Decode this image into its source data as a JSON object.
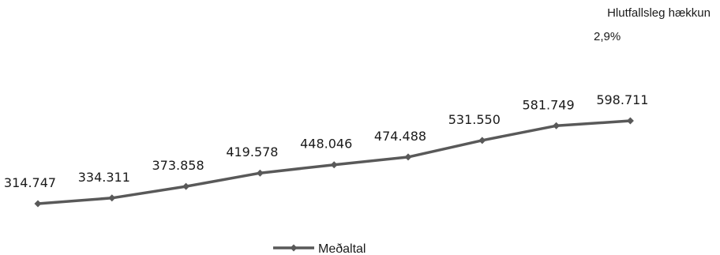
{
  "annotation": {
    "label": "Hlutfallsleg hækkun",
    "value": "2,9%"
  },
  "chart_data": {
    "type": "line",
    "x": [
      1,
      2,
      3,
      4,
      5,
      6,
      7,
      8,
      9
    ],
    "series": [
      {
        "name": "Meðaltal",
        "values": [
          314747,
          334311,
          373858,
          419578,
          448046,
          474488,
          531550,
          581749,
          598711
        ],
        "labels": [
          "314.747",
          "334.311",
          "373.858",
          "419.578",
          "448.046",
          "474.488",
          "531.550",
          "581.749",
          "598.711"
        ],
        "color": "#595959",
        "marker": "diamond"
      }
    ],
    "title": "",
    "xlabel": "",
    "ylabel": "",
    "grid": false,
    "legend": "bottom"
  }
}
